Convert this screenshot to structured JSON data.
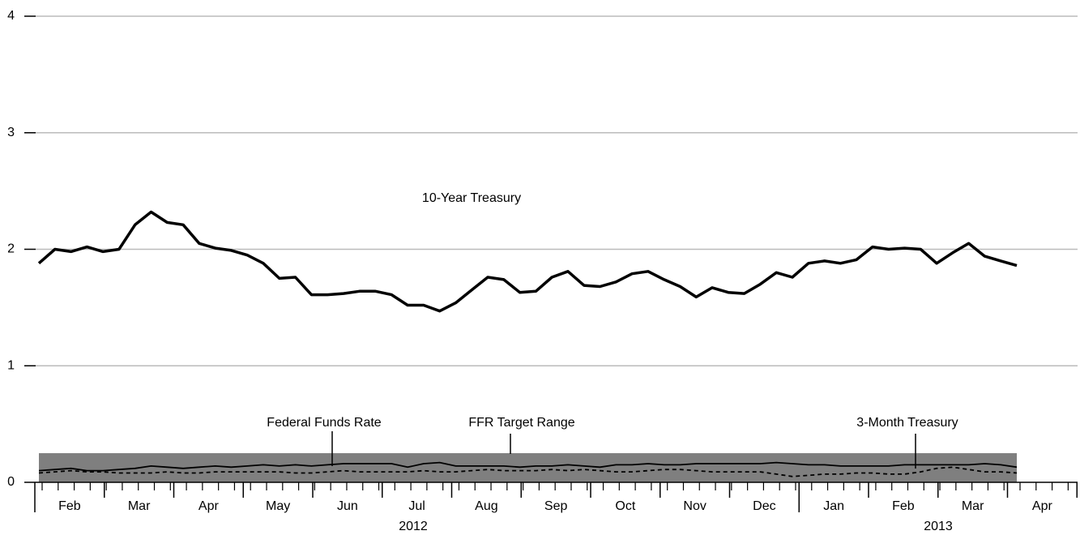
{
  "chart_data": {
    "type": "line",
    "ylim": [
      0,
      4
    ],
    "yticks": [
      0,
      1,
      2,
      3,
      4
    ],
    "grid": true,
    "months": [
      "Feb",
      "Mar",
      "Apr",
      "May",
      "Jun",
      "Jul",
      "Aug",
      "Sep",
      "Oct",
      "Nov",
      "Dec",
      "Jan",
      "Feb",
      "Mar",
      "Apr"
    ],
    "years": [
      "2012",
      "2013"
    ],
    "bands": [
      {
        "name": "FFR Target Range",
        "range": [
          0,
          0.25
        ],
        "color": "#7f7f7f"
      }
    ],
    "series": [
      {
        "name": "10-Year Treasury",
        "color": "#000000",
        "style": "thick",
        "values": [
          1.88,
          2.0,
          1.98,
          2.02,
          1.98,
          2.0,
          2.21,
          2.32,
          2.23,
          2.21,
          2.05,
          2.01,
          1.99,
          1.95,
          1.88,
          1.75,
          1.76,
          1.61,
          1.61,
          1.62,
          1.64,
          1.64,
          1.61,
          1.52,
          1.52,
          1.47,
          1.54,
          1.65,
          1.76,
          1.74,
          1.63,
          1.64,
          1.76,
          1.81,
          1.69,
          1.68,
          1.72,
          1.79,
          1.81,
          1.74,
          1.68,
          1.59,
          1.67,
          1.63,
          1.62,
          1.7,
          1.8,
          1.76,
          1.88,
          1.9,
          1.88,
          1.91,
          2.02,
          2.0,
          2.01,
          2.0,
          1.88,
          1.97,
          2.05,
          1.94,
          1.9,
          1.86
        ]
      },
      {
        "name": "Federal Funds Rate",
        "color": "#000000",
        "style": "thin",
        "values": [
          0.1,
          0.11,
          0.12,
          0.1,
          0.1,
          0.11,
          0.12,
          0.14,
          0.13,
          0.12,
          0.13,
          0.14,
          0.13,
          0.14,
          0.15,
          0.14,
          0.15,
          0.14,
          0.15,
          0.16,
          0.16,
          0.16,
          0.16,
          0.13,
          0.16,
          0.17,
          0.14,
          0.14,
          0.14,
          0.14,
          0.13,
          0.14,
          0.14,
          0.15,
          0.14,
          0.13,
          0.15,
          0.15,
          0.16,
          0.15,
          0.15,
          0.16,
          0.16,
          0.16,
          0.16,
          0.16,
          0.17,
          0.16,
          0.15,
          0.15,
          0.14,
          0.14,
          0.14,
          0.14,
          0.15,
          0.15,
          0.15,
          0.15,
          0.15,
          0.16,
          0.15,
          0.13
        ]
      },
      {
        "name": "3-Month Treasury",
        "color": "#000000",
        "style": "dashed",
        "values": [
          0.08,
          0.09,
          0.1,
          0.09,
          0.09,
          0.08,
          0.08,
          0.08,
          0.09,
          0.08,
          0.08,
          0.09,
          0.09,
          0.09,
          0.09,
          0.09,
          0.08,
          0.08,
          0.09,
          0.1,
          0.09,
          0.09,
          0.09,
          0.09,
          0.1,
          0.09,
          0.09,
          0.1,
          0.11,
          0.1,
          0.1,
          0.1,
          0.11,
          0.1,
          0.11,
          0.1,
          0.09,
          0.09,
          0.1,
          0.11,
          0.11,
          0.1,
          0.09,
          0.09,
          0.09,
          0.09,
          0.07,
          0.05,
          0.06,
          0.07,
          0.07,
          0.08,
          0.08,
          0.07,
          0.07,
          0.09,
          0.12,
          0.13,
          0.11,
          0.09,
          0.09,
          0.08
        ]
      }
    ]
  }
}
